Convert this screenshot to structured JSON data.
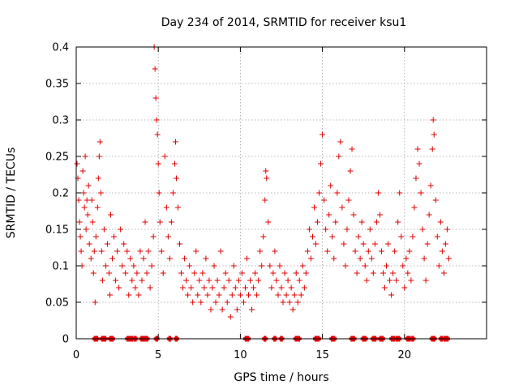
{
  "chart_data": {
    "type": "scatter",
    "title": "Day 234 of 2014, SRMTID for receiver ksu1",
    "xlabel": "GPS time / hours",
    "ylabel": "SRMTID / TECUs",
    "xlim": [
      0,
      25
    ],
    "ylim": [
      0,
      0.4
    ],
    "x_ticks": [
      0,
      5,
      10,
      15,
      20
    ],
    "x_tick_labels": [
      "0",
      "5",
      "10",
      "15",
      "20"
    ],
    "y_ticks": [
      0,
      0.05,
      0.1,
      0.15,
      0.2,
      0.25,
      0.3,
      0.35,
      0.4
    ],
    "y_tick_labels": [
      "0",
      "0.05",
      "0.1",
      "0.15",
      "0.2",
      "0.25",
      "0.3",
      "0.35",
      "0.4"
    ],
    "grid": true,
    "marker": "+",
    "color": "#e00000",
    "series": [
      {
        "name": "SRMTID",
        "points": [
          [
            0.05,
            0.24
          ],
          [
            0.1,
            0.22
          ],
          [
            0.15,
            0.19
          ],
          [
            0.2,
            0.16
          ],
          [
            0.25,
            0.14
          ],
          [
            0.3,
            0.12
          ],
          [
            0.35,
            0.1
          ],
          [
            0.4,
            0.23
          ],
          [
            0.45,
            0.2
          ],
          [
            0.5,
            0.18
          ],
          [
            0.55,
            0.25
          ],
          [
            0.6,
            0.15
          ],
          [
            0.65,
            0.19
          ],
          [
            0.7,
            0.17
          ],
          [
            0.75,
            0.21
          ],
          [
            0.8,
            0.13
          ],
          [
            0.9,
            0.11
          ],
          [
            0.95,
            0.19
          ],
          [
            1.0,
            0.16
          ],
          [
            1.05,
            0.09
          ],
          [
            1.1,
            0.12
          ],
          [
            1.15,
            0.05
          ],
          [
            1.2,
            0.14
          ],
          [
            1.3,
            0.18
          ],
          [
            1.35,
            0.22
          ],
          [
            1.4,
            0.25
          ],
          [
            1.45,
            0.27
          ],
          [
            1.5,
            0.2
          ],
          [
            1.55,
            0.12
          ],
          [
            1.6,
            0.08
          ],
          [
            1.7,
            0.15
          ],
          [
            1.8,
            0.1
          ],
          [
            1.9,
            0.13
          ],
          [
            2.0,
            0.09
          ],
          [
            2.05,
            0.06
          ],
          [
            2.1,
            0.17
          ],
          [
            2.2,
            0.11
          ],
          [
            2.3,
            0.14
          ],
          [
            2.4,
            0.08
          ],
          [
            2.5,
            0.12
          ],
          [
            2.6,
            0.07
          ],
          [
            2.7,
            0.15
          ],
          [
            2.8,
            0.1
          ],
          [
            2.9,
            0.13
          ],
          [
            3.0,
            0.09
          ],
          [
            3.1,
            0.12
          ],
          [
            3.2,
            0.06
          ],
          [
            3.3,
            0.11
          ],
          [
            3.4,
            0.08
          ],
          [
            3.5,
            0.1
          ],
          [
            3.6,
            0.07
          ],
          [
            3.7,
            0.09
          ],
          [
            3.8,
            0.06
          ],
          [
            3.9,
            0.12
          ],
          [
            4.0,
            0.08
          ],
          [
            4.1,
            0.11
          ],
          [
            4.2,
            0.16
          ],
          [
            4.3,
            0.09
          ],
          [
            4.4,
            0.12
          ],
          [
            4.5,
            0.07
          ],
          [
            4.6,
            0.1
          ],
          [
            4.7,
            0.14
          ],
          [
            4.75,
            0.4
          ],
          [
            4.8,
            0.37
          ],
          [
            4.85,
            0.33
          ],
          [
            4.9,
            0.3
          ],
          [
            4.95,
            0.28
          ],
          [
            5.0,
            0.24
          ],
          [
            5.05,
            0.2
          ],
          [
            5.1,
            0.16
          ],
          [
            5.2,
            0.12
          ],
          [
            5.3,
            0.09
          ],
          [
            5.4,
            0.25
          ],
          [
            5.5,
            0.18
          ],
          [
            5.6,
            0.14
          ],
          [
            5.7,
            0.11
          ],
          [
            5.8,
            0.16
          ],
          [
            5.9,
            0.2
          ],
          [
            6.0,
            0.24
          ],
          [
            6.05,
            0.27
          ],
          [
            6.1,
            0.22
          ],
          [
            6.2,
            0.18
          ],
          [
            6.3,
            0.13
          ],
          [
            6.4,
            0.09
          ],
          [
            6.5,
            0.07
          ],
          [
            6.6,
            0.11
          ],
          [
            6.7,
            0.08
          ],
          [
            6.8,
            0.06
          ],
          [
            6.9,
            0.1
          ],
          [
            7.0,
            0.07
          ],
          [
            7.1,
            0.05
          ],
          [
            7.2,
            0.09
          ],
          [
            7.3,
            0.12
          ],
          [
            7.4,
            0.06
          ],
          [
            7.5,
            0.08
          ],
          [
            7.6,
            0.05
          ],
          [
            7.7,
            0.09
          ],
          [
            7.8,
            0.07
          ],
          [
            7.9,
            0.11
          ],
          [
            8.0,
            0.06
          ],
          [
            8.1,
            0.08
          ],
          [
            8.2,
            0.04
          ],
          [
            8.3,
            0.07
          ],
          [
            8.4,
            0.1
          ],
          [
            8.5,
            0.05
          ],
          [
            8.6,
            0.08
          ],
          [
            8.7,
            0.06
          ],
          [
            8.8,
            0.12
          ],
          [
            8.9,
            0.04
          ],
          [
            9.0,
            0.07
          ],
          [
            9.1,
            0.09
          ],
          [
            9.2,
            0.05
          ],
          [
            9.3,
            0.08
          ],
          [
            9.4,
            0.03
          ],
          [
            9.5,
            0.06
          ],
          [
            9.6,
            0.1
          ],
          [
            9.7,
            0.07
          ],
          [
            9.8,
            0.04
          ],
          [
            9.9,
            0.08
          ],
          [
            10.0,
            0.06
          ],
          [
            10.1,
            0.09
          ],
          [
            10.2,
            0.05
          ],
          [
            10.3,
            0.07
          ],
          [
            10.4,
            0.11
          ],
          [
            10.5,
            0.06
          ],
          [
            10.6,
            0.08
          ],
          [
            10.7,
            0.04
          ],
          [
            10.8,
            0.07
          ],
          [
            10.9,
            0.09
          ],
          [
            11.0,
            0.06
          ],
          [
            11.1,
            0.08
          ],
          [
            11.2,
            0.12
          ],
          [
            11.3,
            0.1
          ],
          [
            11.4,
            0.14
          ],
          [
            11.5,
            0.19
          ],
          [
            11.55,
            0.23
          ],
          [
            11.6,
            0.22
          ],
          [
            11.7,
            0.16
          ],
          [
            11.8,
            0.1
          ],
          [
            11.9,
            0.07
          ],
          [
            12.0,
            0.09
          ],
          [
            12.1,
            0.12
          ],
          [
            12.2,
            0.08
          ],
          [
            12.3,
            0.06
          ],
          [
            12.4,
            0.1
          ],
          [
            12.5,
            0.07
          ],
          [
            12.6,
            0.05
          ],
          [
            12.7,
            0.09
          ],
          [
            12.8,
            0.06
          ],
          [
            12.9,
            0.08
          ],
          [
            13.0,
            0.05
          ],
          [
            13.1,
            0.07
          ],
          [
            13.2,
            0.04
          ],
          [
            13.3,
            0.06
          ],
          [
            13.4,
            0.09
          ],
          [
            13.5,
            0.05
          ],
          [
            13.6,
            0.08
          ],
          [
            13.7,
            0.06
          ],
          [
            13.8,
            0.1
          ],
          [
            13.9,
            0.07
          ],
          [
            14.0,
            0.09
          ],
          [
            14.1,
            0.12
          ],
          [
            14.2,
            0.15
          ],
          [
            14.3,
            0.11
          ],
          [
            14.4,
            0.14
          ],
          [
            14.5,
            0.18
          ],
          [
            14.6,
            0.13
          ],
          [
            14.7,
            0.16
          ],
          [
            14.8,
            0.2
          ],
          [
            14.9,
            0.24
          ],
          [
            15.0,
            0.28
          ],
          [
            15.1,
            0.19
          ],
          [
            15.2,
            0.15
          ],
          [
            15.3,
            0.12
          ],
          [
            15.4,
            0.17
          ],
          [
            15.5,
            0.21
          ],
          [
            15.6,
            0.14
          ],
          [
            15.7,
            0.11
          ],
          [
            15.8,
            0.16
          ],
          [
            15.9,
            0.2
          ],
          [
            16.0,
            0.25
          ],
          [
            16.1,
            0.27
          ],
          [
            16.2,
            0.18
          ],
          [
            16.3,
            0.13
          ],
          [
            16.4,
            0.1
          ],
          [
            16.5,
            0.15
          ],
          [
            16.6,
            0.19
          ],
          [
            16.7,
            0.23
          ],
          [
            16.8,
            0.26
          ],
          [
            16.9,
            0.17
          ],
          [
            17.0,
            0.12
          ],
          [
            17.1,
            0.09
          ],
          [
            17.2,
            0.14
          ],
          [
            17.3,
            0.11
          ],
          [
            17.4,
            0.16
          ],
          [
            17.5,
            0.13
          ],
          [
            17.6,
            0.1
          ],
          [
            17.7,
            0.08
          ],
          [
            17.8,
            0.12
          ],
          [
            17.9,
            0.15
          ],
          [
            18.0,
            0.11
          ],
          [
            18.1,
            0.09
          ],
          [
            18.2,
            0.13
          ],
          [
            18.3,
            0.16
          ],
          [
            18.4,
            0.2
          ],
          [
            18.5,
            0.17
          ],
          [
            18.6,
            0.12
          ],
          [
            18.7,
            0.09
          ],
          [
            18.8,
            0.07
          ],
          [
            18.9,
            0.1
          ],
          [
            19.0,
            0.13
          ],
          [
            19.1,
            0.08
          ],
          [
            19.2,
            0.06
          ],
          [
            19.3,
            0.09
          ],
          [
            19.4,
            0.12
          ],
          [
            19.5,
            0.08
          ],
          [
            19.6,
            0.16
          ],
          [
            19.7,
            0.2
          ],
          [
            19.8,
            0.14
          ],
          [
            19.9,
            0.1
          ],
          [
            20.0,
            0.07
          ],
          [
            20.1,
            0.11
          ],
          [
            20.2,
            0.09
          ],
          [
            20.3,
            0.12
          ],
          [
            20.4,
            0.08
          ],
          [
            20.5,
            0.14
          ],
          [
            20.6,
            0.18
          ],
          [
            20.7,
            0.22
          ],
          [
            20.8,
            0.26
          ],
          [
            20.9,
            0.24
          ],
          [
            21.0,
            0.2
          ],
          [
            21.1,
            0.15
          ],
          [
            21.2,
            0.11
          ],
          [
            21.3,
            0.08
          ],
          [
            21.4,
            0.13
          ],
          [
            21.5,
            0.17
          ],
          [
            21.6,
            0.21
          ],
          [
            21.7,
            0.26
          ],
          [
            21.75,
            0.3
          ],
          [
            21.8,
            0.28
          ],
          [
            21.9,
            0.19
          ],
          [
            22.0,
            0.14
          ],
          [
            22.1,
            0.1
          ],
          [
            22.2,
            0.16
          ],
          [
            22.3,
            0.12
          ],
          [
            22.4,
            0.09
          ],
          [
            22.5,
            0.13
          ],
          [
            22.6,
            0.15
          ],
          [
            22.7,
            0.11
          ],
          [
            1.15,
            0.0
          ],
          [
            1.25,
            0.0
          ],
          [
            1.6,
            0.0
          ],
          [
            1.75,
            0.0
          ],
          [
            2.1,
            0.0
          ],
          [
            2.2,
            0.0
          ],
          [
            3.15,
            0.0
          ],
          [
            3.25,
            0.0
          ],
          [
            3.4,
            0.0
          ],
          [
            3.6,
            0.0
          ],
          [
            4.0,
            0.0
          ],
          [
            4.15,
            0.0
          ],
          [
            4.3,
            0.0
          ],
          [
            4.9,
            0.0
          ],
          [
            5.7,
            0.0
          ],
          [
            6.1,
            0.0
          ],
          [
            10.35,
            0.0
          ],
          [
            10.45,
            0.0
          ],
          [
            11.5,
            0.0
          ],
          [
            12.1,
            0.0
          ],
          [
            12.5,
            0.0
          ],
          [
            13.4,
            0.0
          ],
          [
            13.55,
            0.0
          ],
          [
            14.6,
            0.0
          ],
          [
            14.75,
            0.0
          ],
          [
            15.6,
            0.0
          ],
          [
            15.7,
            0.0
          ],
          [
            16.8,
            0.0
          ],
          [
            16.9,
            0.0
          ],
          [
            17.5,
            0.0
          ],
          [
            17.6,
            0.0
          ],
          [
            18.1,
            0.0
          ],
          [
            18.2,
            0.0
          ],
          [
            18.55,
            0.0
          ],
          [
            18.65,
            0.0
          ],
          [
            19.25,
            0.0
          ],
          [
            19.35,
            0.0
          ],
          [
            19.55,
            0.0
          ],
          [
            19.65,
            0.0
          ],
          [
            20.2,
            0.0
          ],
          [
            20.3,
            0.0
          ],
          [
            20.5,
            0.0
          ],
          [
            21.7,
            0.0
          ],
          [
            21.8,
            0.0
          ],
          [
            22.25,
            0.0
          ],
          [
            22.45,
            0.0
          ],
          [
            22.6,
            0.0
          ]
        ]
      }
    ]
  }
}
